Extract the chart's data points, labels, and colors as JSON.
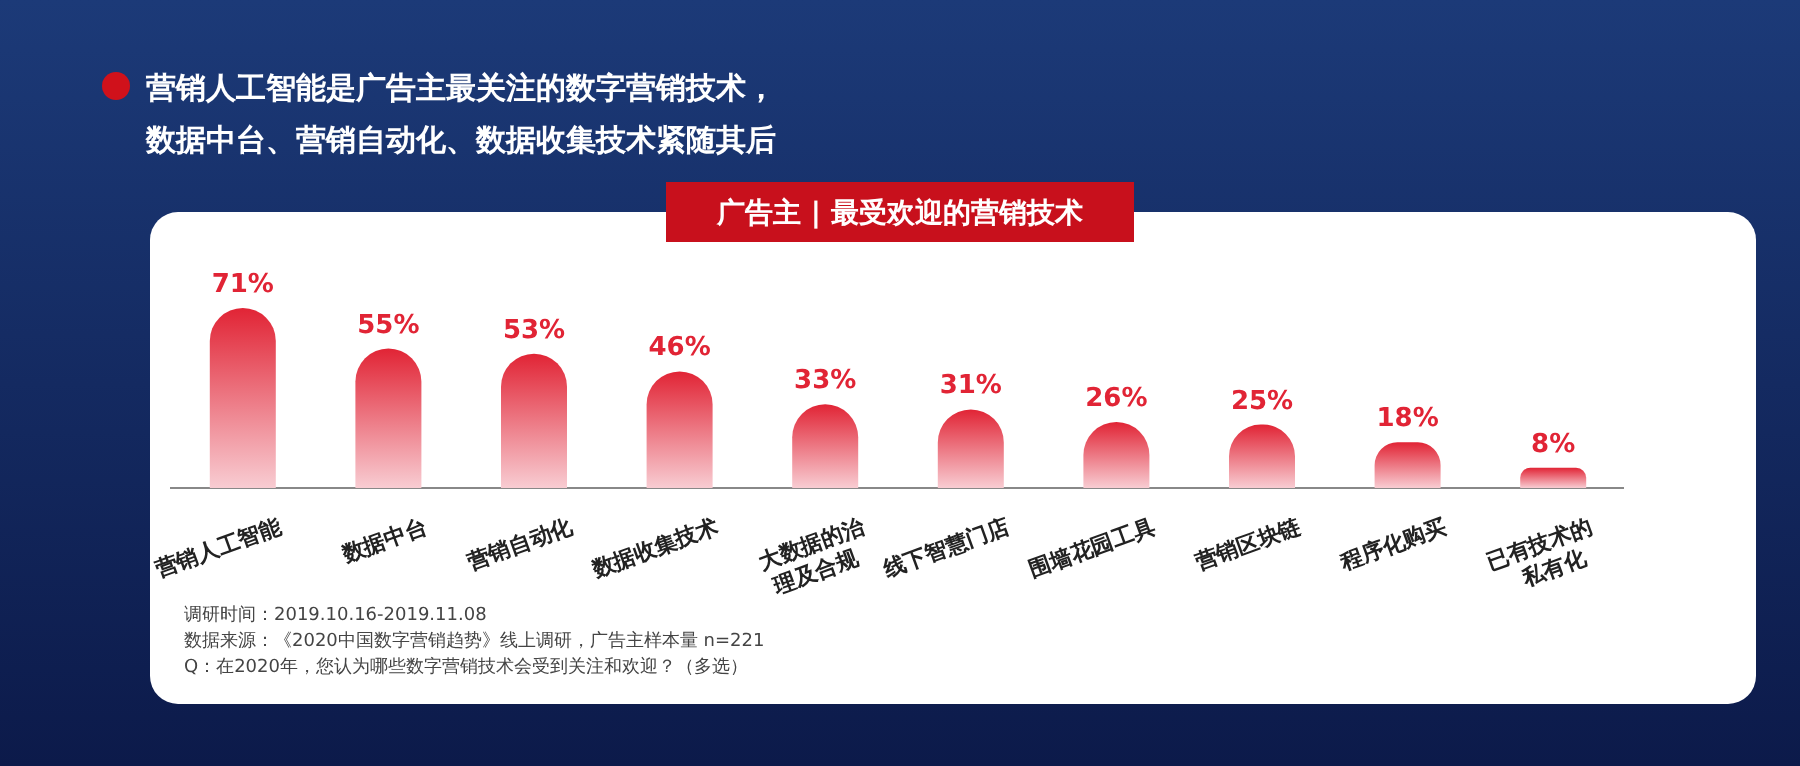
{
  "chart_data": {
    "type": "bar",
    "title": "广告主 | 最受欢迎的营销技术",
    "subtitle": "营销人工智能是广告主最关注的数字营销技术，数据中台、营销自动化、数据收集技术紧随其后",
    "categories": [
      "营销人工智能",
      "数据中台",
      "营销自动化",
      "数据收集技术",
      "大数据的治理及合规",
      "线下智慧门店",
      "围墙花园工具",
      "营销区块链",
      "程序化购买",
      "已有技术的私有化"
    ],
    "values": [
      71,
      55,
      53,
      46,
      33,
      31,
      26,
      25,
      18,
      8
    ],
    "color": "#e12435",
    "value_labels": [
      "71%",
      "55%",
      "53%",
      "46%",
      "33%",
      "31%",
      "26%",
      "25%",
      "18%",
      "8%"
    ],
    "annotations": [
      "调研时间：2019.10.16-2019.11.08",
      "数据来源：《2020中国数字营销趋势》线上调研，广告主样本量 n=221",
      "Q：在2020年，您认为哪些数字营销技术会受到关注和欢迎？（多选）"
    ]
  }
}
